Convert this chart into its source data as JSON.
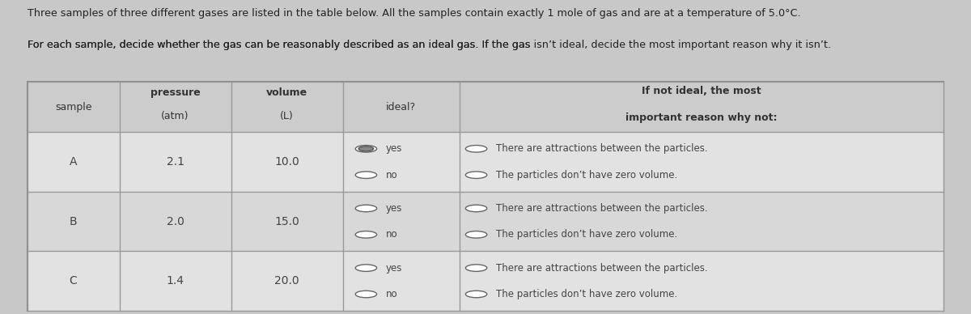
{
  "title_line1": "Three samples of three different gases are listed in the table below. All the samples contain exactly 1 mole of gas and are at a temperature of 5.0°C.",
  "title_line2_pre": "For each sample, decide whether the gas can be reasonably described as an ideal gas. If the gas ",
  "title_line2_italic": "isn’t",
  "title_line2_post": " ideal, decide the ",
  "title_line2_bold": "most important",
  "title_line2_end": " reason why it isn’t.",
  "bg_color": "#c8c8c8",
  "table_bg": "#e2e2e2",
  "header_bg": "#cccccc",
  "row_bg_odd": "#e2e2e2",
  "row_bg_even": "#d8d8d8",
  "border_color": "#888888",
  "text_color": "#333333",
  "samples": [
    "A",
    "B",
    "C"
  ],
  "pressures": [
    "2.1",
    "2.0",
    "1.4"
  ],
  "volumes": [
    "10.0",
    "15.0",
    "20.0"
  ],
  "row_yes_filled": [
    true,
    false,
    false
  ],
  "row_no_filled": [
    false,
    false,
    false
  ],
  "reason1": "There are attractions between the particles.",
  "reason2": "The particles don’t have zero volume."
}
